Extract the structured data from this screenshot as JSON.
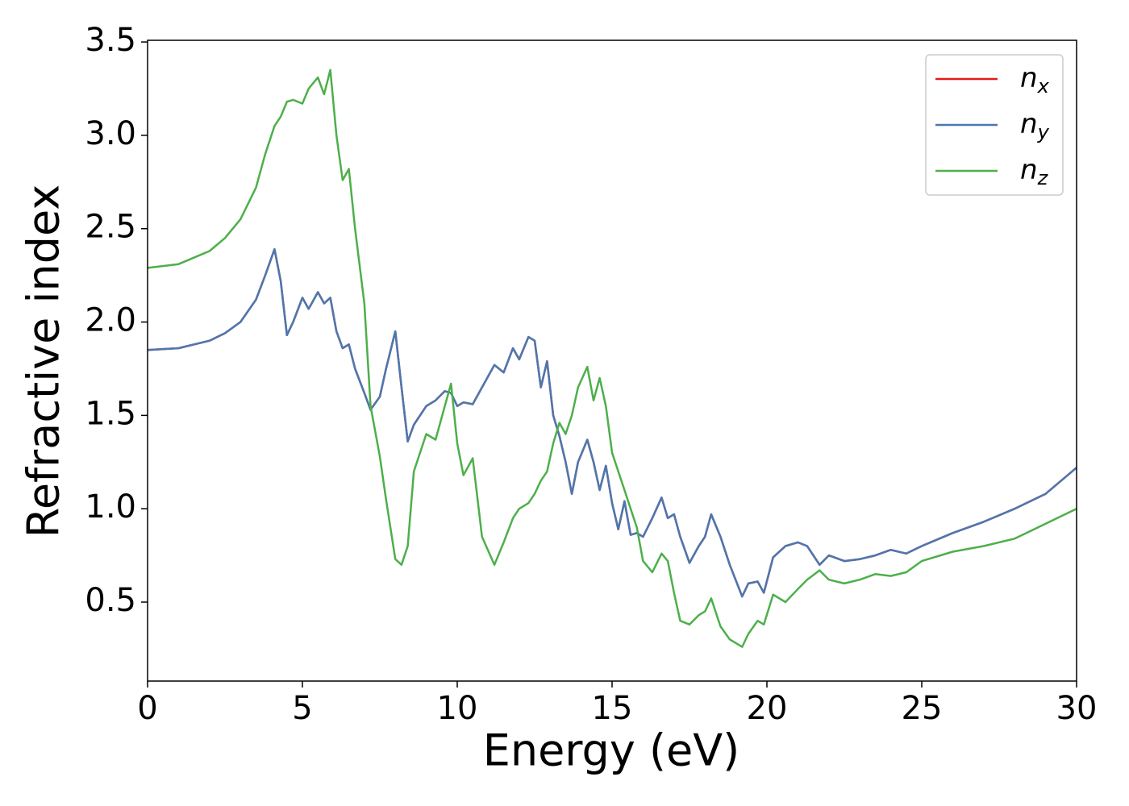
{
  "chart_data": {
    "type": "line",
    "xlabel": "Energy (eV)",
    "ylabel": "Refractive index",
    "x": [
      0,
      1,
      2,
      2.5,
      3,
      3.5,
      3.8,
      4.1,
      4.3,
      4.5,
      4.7,
      5.0,
      5.2,
      5.5,
      5.7,
      5.9,
      6.1,
      6.3,
      6.5,
      6.7,
      7.0,
      7.2,
      7.5,
      7.7,
      8.0,
      8.2,
      8.4,
      8.6,
      9.0,
      9.3,
      9.6,
      9.8,
      10.0,
      10.2,
      10.5,
      10.8,
      11.2,
      11.5,
      11.8,
      12.0,
      12.3,
      12.5,
      12.7,
      12.9,
      13.1,
      13.3,
      13.5,
      13.7,
      13.9,
      14.2,
      14.4,
      14.6,
      14.8,
      15.0,
      15.2,
      15.4,
      15.6,
      15.8,
      16.0,
      16.3,
      16.6,
      16.8,
      17.0,
      17.2,
      17.5,
      17.8,
      18.0,
      18.2,
      18.5,
      18.8,
      19.2,
      19.4,
      19.7,
      19.9,
      20.2,
      20.6,
      21.0,
      21.3,
      21.7,
      22.0,
      22.5,
      23.0,
      23.5,
      24.0,
      24.5,
      25.0,
      26.0,
      27.0,
      28.0,
      29.0,
      30
    ],
    "series": [
      {
        "name": "n_x",
        "color": "#e41a1c",
        "values": [
          1.85,
          1.86,
          1.9,
          1.94,
          2.0,
          2.12,
          2.25,
          2.39,
          2.22,
          1.93,
          2.0,
          2.13,
          2.07,
          2.16,
          2.1,
          2.13,
          1.95,
          1.86,
          1.88,
          1.75,
          1.62,
          1.53,
          1.6,
          1.75,
          1.95,
          1.65,
          1.36,
          1.45,
          1.55,
          1.58,
          1.63,
          1.62,
          1.55,
          1.57,
          1.56,
          1.65,
          1.77,
          1.73,
          1.86,
          1.8,
          1.92,
          1.9,
          1.65,
          1.79,
          1.5,
          1.39,
          1.25,
          1.08,
          1.25,
          1.37,
          1.25,
          1.1,
          1.23,
          1.03,
          0.89,
          1.04,
          0.86,
          0.87,
          0.85,
          0.95,
          1.06,
          0.95,
          0.97,
          0.85,
          0.71,
          0.8,
          0.85,
          0.97,
          0.85,
          0.7,
          0.53,
          0.6,
          0.61,
          0.55,
          0.74,
          0.8,
          0.82,
          0.8,
          0.7,
          0.75,
          0.72,
          0.73,
          0.75,
          0.78,
          0.76,
          0.8,
          0.87,
          0.93,
          1.0,
          1.08,
          1.22
        ]
      },
      {
        "name": "n_y",
        "color": "#4a78b0",
        "values": [
          1.85,
          1.86,
          1.9,
          1.94,
          2.0,
          2.12,
          2.25,
          2.39,
          2.22,
          1.93,
          2.0,
          2.13,
          2.07,
          2.16,
          2.1,
          2.13,
          1.95,
          1.86,
          1.88,
          1.75,
          1.62,
          1.53,
          1.6,
          1.75,
          1.95,
          1.65,
          1.36,
          1.45,
          1.55,
          1.58,
          1.63,
          1.62,
          1.55,
          1.57,
          1.56,
          1.65,
          1.77,
          1.73,
          1.86,
          1.8,
          1.92,
          1.9,
          1.65,
          1.79,
          1.5,
          1.39,
          1.25,
          1.08,
          1.25,
          1.37,
          1.25,
          1.1,
          1.23,
          1.03,
          0.89,
          1.04,
          0.86,
          0.87,
          0.85,
          0.95,
          1.06,
          0.95,
          0.97,
          0.85,
          0.71,
          0.8,
          0.85,
          0.97,
          0.85,
          0.7,
          0.53,
          0.6,
          0.61,
          0.55,
          0.74,
          0.8,
          0.82,
          0.8,
          0.7,
          0.75,
          0.72,
          0.73,
          0.75,
          0.78,
          0.76,
          0.8,
          0.87,
          0.93,
          1.0,
          1.08,
          1.22
        ]
      },
      {
        "name": "n_z",
        "color": "#4daf4a",
        "values": [
          2.29,
          2.31,
          2.38,
          2.45,
          2.55,
          2.72,
          2.9,
          3.05,
          3.1,
          3.18,
          3.19,
          3.17,
          3.25,
          3.31,
          3.22,
          3.35,
          3.0,
          2.76,
          2.82,
          2.5,
          2.1,
          1.55,
          1.28,
          1.05,
          0.73,
          0.7,
          0.8,
          1.2,
          1.4,
          1.37,
          1.55,
          1.67,
          1.35,
          1.18,
          1.27,
          0.85,
          0.7,
          0.82,
          0.95,
          1.0,
          1.03,
          1.08,
          1.15,
          1.2,
          1.35,
          1.46,
          1.4,
          1.5,
          1.65,
          1.76,
          1.58,
          1.7,
          1.55,
          1.3,
          1.2,
          1.1,
          1.0,
          0.9,
          0.72,
          0.66,
          0.76,
          0.72,
          0.55,
          0.4,
          0.38,
          0.43,
          0.45,
          0.52,
          0.37,
          0.3,
          0.26,
          0.33,
          0.4,
          0.38,
          0.54,
          0.5,
          0.57,
          0.62,
          0.67,
          0.62,
          0.6,
          0.62,
          0.65,
          0.64,
          0.66,
          0.72,
          0.77,
          0.8,
          0.84,
          0.92,
          1.0
        ]
      }
    ],
    "xlim": [
      0,
      30
    ],
    "xticks": [
      0,
      5,
      10,
      15,
      20,
      25,
      30
    ],
    "ylim": [
      0.077,
      3.509
    ],
    "yticks": [
      0.5,
      {
        "value": 1,
        "label": "1.0"
      },
      1.5,
      {
        "value": 2,
        "label": "2.0"
      },
      2.5,
      {
        "value": 3,
        "label": "3.0"
      },
      3.5
    ],
    "legend": "upper right",
    "grid": false
  }
}
